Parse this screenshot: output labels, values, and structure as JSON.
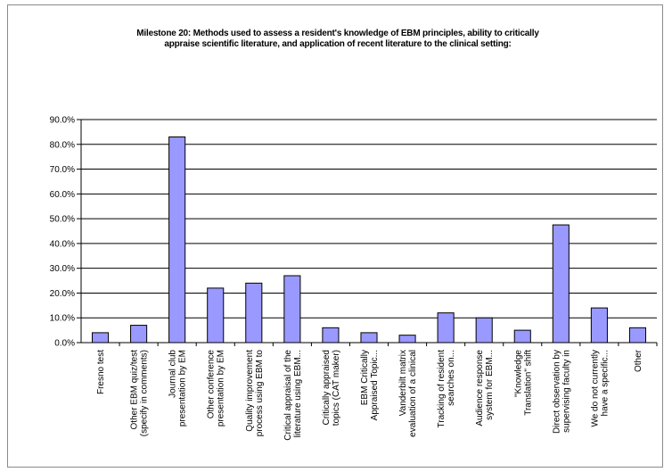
{
  "chart_data": {
    "type": "bar",
    "title_line1": "Milestone 20:  Methods used to assess a resident's knowledge of EBM principles, ability to critically",
    "title_line2": "appraise scientific literature, and application of recent literature to the clinical setting:",
    "xlabel": "",
    "ylabel": "",
    "ylim": [
      0,
      90
    ],
    "yticks": [
      "0.0%",
      "10.0%",
      "20.0%",
      "30.0%",
      "40.0%",
      "50.0%",
      "60.0%",
      "70.0%",
      "80.0%",
      "90.0%"
    ],
    "grid": true,
    "legend": "none",
    "bar_color": "#9999ff",
    "categories": [
      [
        "Fresno test"
      ],
      [
        "Other EBM quiz/test",
        "(specify in comments)"
      ],
      [
        "Journal club",
        "presentation by EM"
      ],
      [
        "Other conference",
        "presentation by EM"
      ],
      [
        "Quality improvement",
        "process using EBM to"
      ],
      [
        "Critical appraisal of the",
        "literature using EBM..."
      ],
      [
        "Critically appraised",
        "topics (CAT maker)"
      ],
      [
        "EBM Critically",
        "Appraised Topic..."
      ],
      [
        "Vanderbilt matrix",
        "evaluation of a clinical"
      ],
      [
        "Tracking of resident",
        "searches on..."
      ],
      [
        "Audience response",
        "system for EBM..."
      ],
      [
        "\"Knowledge",
        "Translation\" shift"
      ],
      [
        "Direct observation by",
        "supervising faculty in"
      ],
      [
        "We do not currently",
        "have a specific..."
      ],
      [
        "Other"
      ]
    ],
    "values": [
      4.0,
      7.0,
      83.0,
      22.0,
      24.0,
      27.0,
      6.0,
      4.0,
      3.0,
      12.0,
      10.0,
      5.0,
      47.5,
      14.0,
      6.0
    ]
  }
}
